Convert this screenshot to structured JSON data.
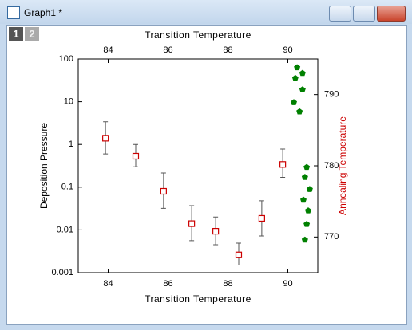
{
  "window": {
    "title": "Graph1 *",
    "tabs": [
      "1",
      "2"
    ]
  },
  "chart_data": {
    "type": "scatter",
    "xlabel": "Transition Temperature",
    "ylabel": "Deposition Pressure",
    "y2label": "Annealing Temperature",
    "y2label_color": "#cc0000",
    "xlim": [
      83,
      91
    ],
    "xticks": [
      84,
      86,
      88,
      90
    ],
    "ylim": [
      0.001,
      100
    ],
    "yticks": [
      100,
      10,
      1,
      0.1,
      0.01,
      0.001
    ],
    "ylog": true,
    "y2lim": [
      765,
      795
    ],
    "y2ticks": [
      770,
      780,
      790
    ],
    "series": [
      {
        "color": "#cc0000",
        "marker": "square",
        "x": [
          83.91,
          84.92,
          85.85,
          86.79,
          87.59,
          88.36,
          89.13,
          89.83
        ],
        "values": [
          1.4,
          0.53,
          0.08,
          0.014,
          0.0093,
          0.0026,
          0.0186,
          0.34
        ],
        "errors_minus": [
          0.8,
          0.23,
          0.048,
          0.0084,
          0.0048,
          0.0011,
          0.0114,
          0.17
        ],
        "errors_plus": [
          2.0,
          0.47,
          0.135,
          0.023,
          0.0107,
          0.0023,
          0.0294,
          0.44
        ]
      },
      {
        "color": "#008000",
        "marker": "pentagon",
        "axis": "y2",
        "x": [
          90.31,
          90.49,
          90.25,
          90.49,
          90.2,
          90.39,
          90.63,
          90.57,
          90.73,
          90.52,
          90.68,
          90.63,
          90.57
        ],
        "values": [
          793.8,
          793.0,
          792.3,
          790.7,
          788.9,
          787.6,
          779.8,
          778.4,
          776.7,
          775.2,
          773.7,
          771.8,
          769.6
        ]
      }
    ]
  }
}
